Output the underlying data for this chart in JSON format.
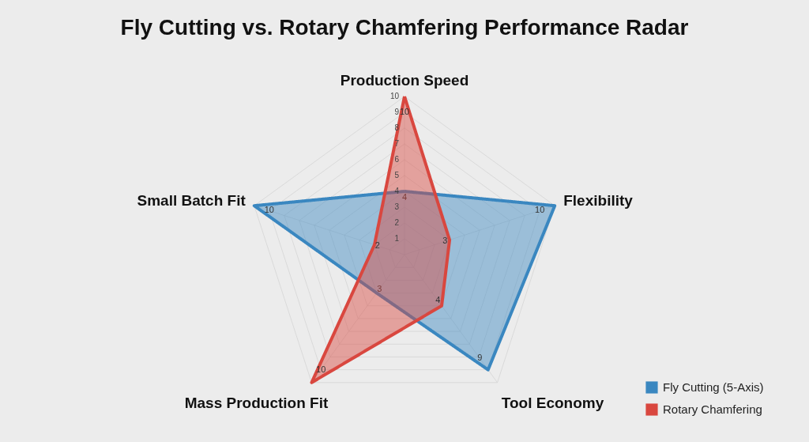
{
  "chart_data": {
    "type": "radar",
    "title": "Fly Cutting vs. Rotary Chamfering Performance Radar",
    "categories": [
      "Production Speed",
      "Flexibility",
      "Tool Economy",
      "Mass Production Fit",
      "Small Batch Fit"
    ],
    "series": [
      {
        "name": "Fly Cutting (5-Axis)",
        "color": "#3a87c0",
        "values": [
          4,
          10,
          9,
          3,
          10
        ]
      },
      {
        "name": "Rotary Chamfering",
        "color": "#d9473f",
        "values": [
          10,
          3,
          4,
          10,
          2
        ]
      }
    ],
    "ylim": [
      0,
      10
    ],
    "yticks": [
      1,
      2,
      3,
      4,
      5,
      6,
      7,
      8,
      9,
      10
    ],
    "grid": true,
    "legend": "bottom right",
    "data_labels": true
  }
}
